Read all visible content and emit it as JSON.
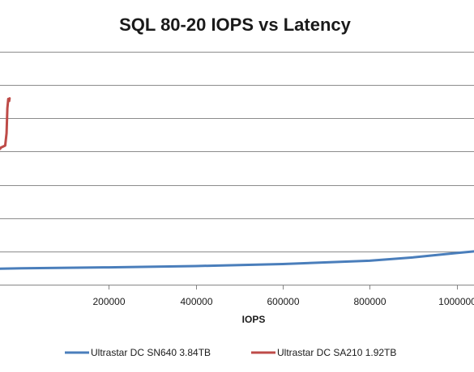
{
  "chart_data": {
    "type": "line",
    "title": "SQL 80-20 IOPS vs Latency",
    "xlabel": "IOPS",
    "ylabel": "",
    "xlim": [
      -50000,
      1040000
    ],
    "ylim": [
      0,
      7
    ],
    "x_ticks": [
      200000,
      400000,
      600000,
      800000,
      1000000
    ],
    "x_tick_labels": [
      "200000",
      "400000",
      "600000",
      "800000",
      "1000000"
    ],
    "y_gridlines": [
      0,
      1,
      2,
      3,
      4,
      5,
      6,
      7
    ],
    "grid": true,
    "legend": "bottom",
    "series": [
      {
        "name": "Ultrastar DC SN640 3.84TB",
        "color": "#4a7ebb",
        "points": [
          [
            -50000,
            0.48
          ],
          [
            0,
            0.49
          ],
          [
            200000,
            0.52
          ],
          [
            400000,
            0.56
          ],
          [
            600000,
            0.62
          ],
          [
            800000,
            0.72
          ],
          [
            900000,
            0.82
          ],
          [
            960000,
            0.9
          ],
          [
            1000000,
            0.95
          ],
          [
            1040000,
            1.0
          ]
        ]
      },
      {
        "name": "Ultrastar DC SA210 1.92TB",
        "color": "#be4b48",
        "points": [
          [
            -50000,
            4.08
          ],
          [
            -48000,
            4.12
          ],
          [
            -38000,
            4.18
          ],
          [
            -35000,
            4.55
          ],
          [
            -33000,
            5.3
          ],
          [
            -31000,
            5.58
          ],
          [
            -29000,
            5.52
          ],
          [
            -28000,
            5.6
          ]
        ]
      }
    ]
  }
}
